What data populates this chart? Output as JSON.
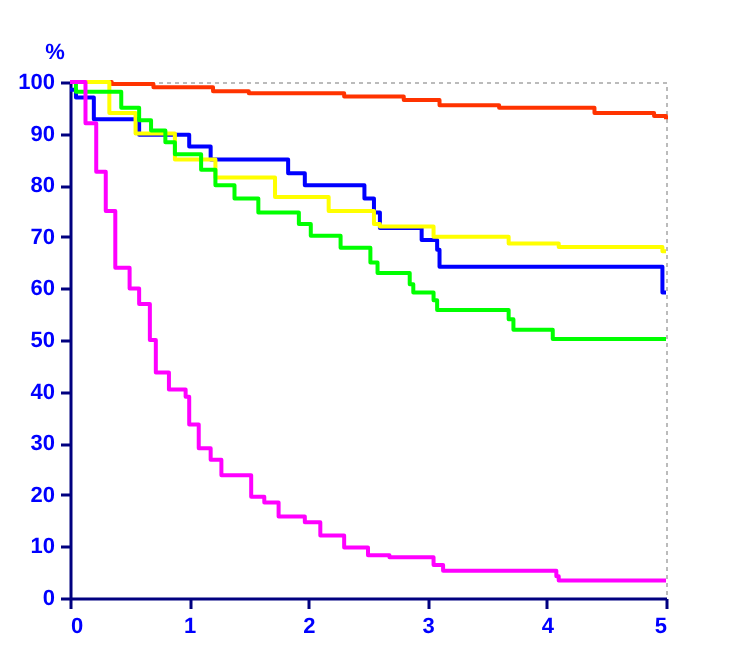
{
  "chart_data": {
    "type": "step",
    "ylabel": "%",
    "xlim": [
      0,
      5
    ],
    "xticks": [
      0,
      1,
      2,
      3,
      4,
      5
    ],
    "ylim": [
      0,
      100
    ],
    "yticks": [
      0,
      10,
      20,
      30,
      40,
      50,
      60,
      70,
      80,
      90,
      100
    ],
    "grid": false,
    "legend": false,
    "line_style": "solid",
    "marker": "none",
    "series": [
      {
        "color": "#ff3300",
        "x": [
          0,
          0.35,
          0.7,
          1.2,
          1.5,
          2.3,
          2.8,
          3.1,
          3.6,
          4.4,
          4.9,
          5
        ],
        "values": [
          100,
          99.6,
          99,
          98.2,
          97.8,
          97.2,
          96.5,
          95.5,
          95,
          94,
          93.4,
          92.8
        ]
      },
      {
        "color": "#0000ff",
        "x": [
          0,
          0.05,
          0.2,
          0.58,
          1.0,
          1.18,
          1.83,
          1.97,
          2.47,
          2.55,
          2.6,
          2.95,
          3.08,
          3.1,
          4.97,
          5
        ],
        "values": [
          98.5,
          97,
          92.8,
          89.8,
          87.5,
          85,
          82.3,
          80,
          77.4,
          74.7,
          71.7,
          69.4,
          67.5,
          64.2,
          59.2,
          59.2
        ]
      },
      {
        "color": "#ffff00",
        "x": [
          0,
          0.33,
          0.55,
          0.88,
          1.22,
          1.72,
          2.17,
          2.55,
          2.6,
          3.05,
          3.68,
          4.1,
          4.97,
          5
        ],
        "values": [
          100,
          94,
          90,
          85,
          81.5,
          77.7,
          75,
          72.5,
          72,
          70,
          68.7,
          68,
          67.2,
          67.2
        ]
      },
      {
        "color": "#00ff00",
        "x": [
          0,
          0.05,
          0.43,
          0.58,
          0.68,
          0.8,
          0.88,
          1.1,
          1.22,
          1.38,
          1.58,
          1.92,
          2.02,
          2.27,
          2.52,
          2.58,
          2.85,
          2.88,
          3.05,
          3.08,
          3.68,
          3.72,
          4.05,
          5
        ],
        "values": [
          100,
          98.1,
          95,
          92.6,
          90.6,
          88.3,
          86,
          83,
          80,
          77.4,
          74.7,
          72.5,
          70.2,
          67.9,
          65,
          63,
          60.8,
          59.2,
          57.7,
          55.8,
          54,
          52,
          50.2,
          50.2
        ]
      },
      {
        "color": "#ff00ff",
        "x": [
          0,
          0.13,
          0.22,
          0.3,
          0.38,
          0.5,
          0.58,
          0.67,
          0.72,
          0.83,
          0.97,
          1.0,
          1.08,
          1.18,
          1.27,
          1.52,
          1.63,
          1.75,
          1.97,
          2.1,
          2.3,
          2.5,
          2.68,
          3.05,
          3.13,
          4.08,
          4.1,
          5
        ],
        "values": [
          100,
          92,
          82.6,
          75,
          64,
          60,
          57,
          50,
          43.7,
          40.4,
          39,
          33.6,
          29,
          26.8,
          23.8,
          19.6,
          18.5,
          15.8,
          14.7,
          12.1,
          9.8,
          8.3,
          7.9,
          6.4,
          5.3,
          4.2,
          3.4,
          3.4
        ]
      }
    ]
  }
}
